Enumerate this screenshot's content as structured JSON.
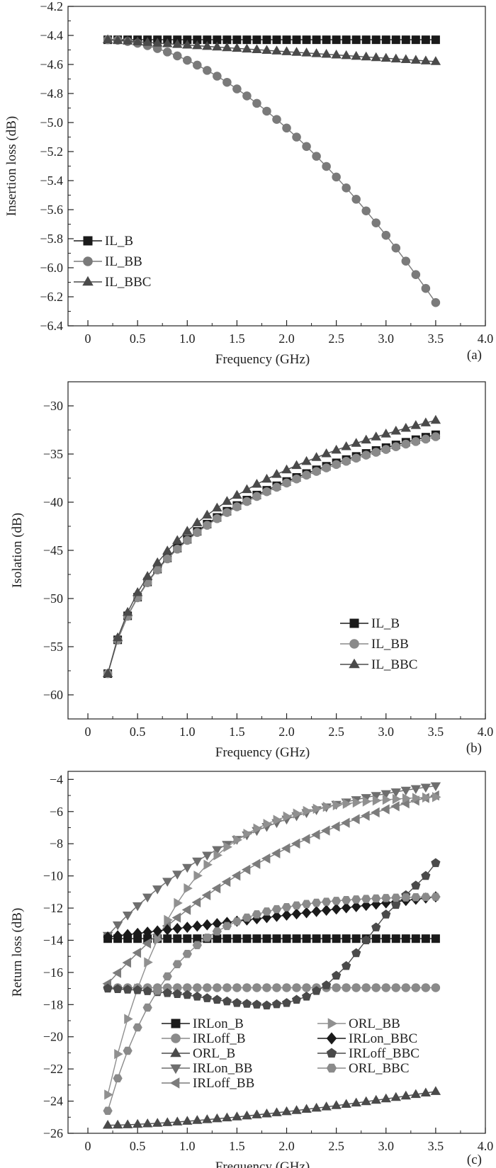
{
  "chart_data": [
    {
      "type": "line",
      "panel_label": "(a)",
      "xlabel": "Frequency (GHz)",
      "ylabel": "Insertion loss (dB)",
      "xlim": [
        -0.2,
        4.0
      ],
      "ylim": [
        -6.4,
        -4.2
      ],
      "xticks": [
        0,
        0.5,
        1.0,
        1.5,
        2.0,
        2.5,
        3.0,
        3.5,
        4.0
      ],
      "xtick_labels": [
        "0",
        "0.5",
        "1.0",
        "1.5",
        "2.0",
        "2.5",
        "3.0",
        "3.5",
        "4.0"
      ],
      "yticks": [
        -6.4,
        -6.2,
        -6.0,
        -5.8,
        -5.6,
        -5.4,
        -5.2,
        -5.0,
        -4.8,
        -4.6,
        -4.4,
        -4.2
      ],
      "ytick_labels": [
        "−6.4",
        "−6.2",
        "−6.0",
        "−5.8",
        "−5.6",
        "−5.4",
        "−5.2",
        "−5.0",
        "−4.8",
        "−4.6",
        "−4.4",
        "−4.2"
      ],
      "legend_position": "bottom-left",
      "series": [
        {
          "name": "IL_B",
          "marker": "square",
          "color": "#1a1a1a",
          "fn": "linear",
          "y0": -4.43,
          "y1": -4.43
        },
        {
          "name": "IL_BB",
          "marker": "circle",
          "color": "#7a7a7a",
          "fn": "power",
          "y0": -4.43,
          "y1": -6.24,
          "p": 1.8
        },
        {
          "name": "IL_BBC",
          "marker": "triangle-up",
          "color": "#4a4a4a",
          "fn": "linear",
          "y0": -4.43,
          "y1": -4.58
        }
      ]
    },
    {
      "type": "line",
      "panel_label": "(b)",
      "xlabel": "Frequency (GHz)",
      "ylabel": "Isolation (dB)",
      "xlim": [
        -0.2,
        4.0
      ],
      "ylim": [
        -62.5,
        -27.5
      ],
      "xticks": [
        0,
        0.5,
        1.0,
        1.5,
        2.0,
        2.5,
        3.0,
        3.5,
        4.0
      ],
      "xtick_labels": [
        "0",
        "0.5",
        "1.0",
        "1.5",
        "2.0",
        "2.5",
        "3.0",
        "3.5",
        "4.0"
      ],
      "yticks": [
        -60,
        -55,
        -50,
        -45,
        -40,
        -35,
        -30
      ],
      "ytick_labels": [
        "−60",
        "−55",
        "−50",
        "−45",
        "−40",
        "−35",
        "−30"
      ],
      "legend_position": "bottom-right",
      "series": [
        {
          "name": "IL_B",
          "marker": "square",
          "color": "#1a1a1a",
          "fn": "log",
          "y0": -57.8,
          "y1": -33.0
        },
        {
          "name": "IL_BB",
          "marker": "circle",
          "color": "#8a8a8a",
          "fn": "log",
          "y0": -57.8,
          "y1": -33.2
        },
        {
          "name": "IL_BBC",
          "marker": "triangle-up",
          "color": "#4a4a4a",
          "fn": "logup",
          "y0": -57.8,
          "y1": -31.5
        }
      ]
    },
    {
      "type": "line",
      "panel_label": "(c)",
      "xlabel": "Frequency (GHz)",
      "ylabel": "Return loss (dB)",
      "xlim": [
        -0.2,
        4.0
      ],
      "ylim": [
        -26,
        -3.5
      ],
      "xticks": [
        0,
        0.5,
        1.0,
        1.5,
        2.0,
        2.5,
        3.0,
        3.5,
        4.0
      ],
      "xtick_labels": [
        "0",
        "0.5",
        "1.0",
        "1.5",
        "2.0",
        "2.5",
        "3.0",
        "3.5",
        "4.0"
      ],
      "yticks": [
        -26,
        -24,
        -22,
        -20,
        -18,
        -16,
        -14,
        -12,
        -10,
        -8,
        -6,
        -4
      ],
      "ytick_labels": [
        "−26",
        "−24",
        "−22",
        "−20",
        "−18",
        "−16",
        "−14",
        "−12",
        "−10",
        "−8",
        "−6",
        "−4"
      ],
      "legend_position": "lower-middle, two columns",
      "series": [
        {
          "name": "IRLon_B",
          "marker": "square",
          "color": "#1a1a1a",
          "fn": "linear",
          "y0": -13.9,
          "y1": -13.9
        },
        {
          "name": "IRLoff_B",
          "marker": "circle",
          "color": "#8a8a8a",
          "fn": "linear",
          "y0": -16.95,
          "y1": -16.95
        },
        {
          "name": "ORL_B",
          "marker": "triangle-up",
          "color": "#4a4a4a",
          "fn": "power",
          "y0": -25.5,
          "y1": -23.4,
          "p": 1.5
        },
        {
          "name": "IRLon_BB",
          "marker": "triangle-down",
          "color": "#6e6e6e",
          "fn": "sat",
          "y0": -13.7,
          "y1": -4.4,
          "k": 0.7
        },
        {
          "name": "IRLoff_BB",
          "marker": "triangle-left",
          "color": "#7c7c7c",
          "fn": "sat",
          "y0": -16.7,
          "y1": -5.0,
          "k": 0.5
        },
        {
          "name": "ORL_BB",
          "marker": "triangle-right",
          "color": "#909090",
          "fn": "sat",
          "y0": -23.6,
          "y1": -5.1,
          "k": 1.6
        },
        {
          "name": "IRLon_BBC",
          "marker": "diamond",
          "color": "#1a1a1a",
          "fn": "linear",
          "y0": -13.8,
          "y1": -11.3
        },
        {
          "name": "IRLoff_BBC",
          "marker": "pentagon",
          "color": "#4a4a4a",
          "fn": "piecewise",
          "x": [
            0.2,
            0.5,
            1.0,
            1.5,
            1.8,
            2.0,
            2.2,
            2.4,
            2.6,
            2.8,
            3.0,
            3.2,
            3.4,
            3.5
          ],
          "y": [
            -17.0,
            -17.1,
            -17.4,
            -17.9,
            -18.05,
            -17.9,
            -17.5,
            -16.8,
            -15.6,
            -14.0,
            -12.4,
            -11.2,
            -10.0,
            -9.2
          ]
        },
        {
          "name": "ORL_BBC",
          "marker": "hexagon",
          "color": "#8a8a8a",
          "fn": "sat",
          "y0": -24.6,
          "y1": -11.3,
          "k": 1.8
        }
      ]
    }
  ]
}
